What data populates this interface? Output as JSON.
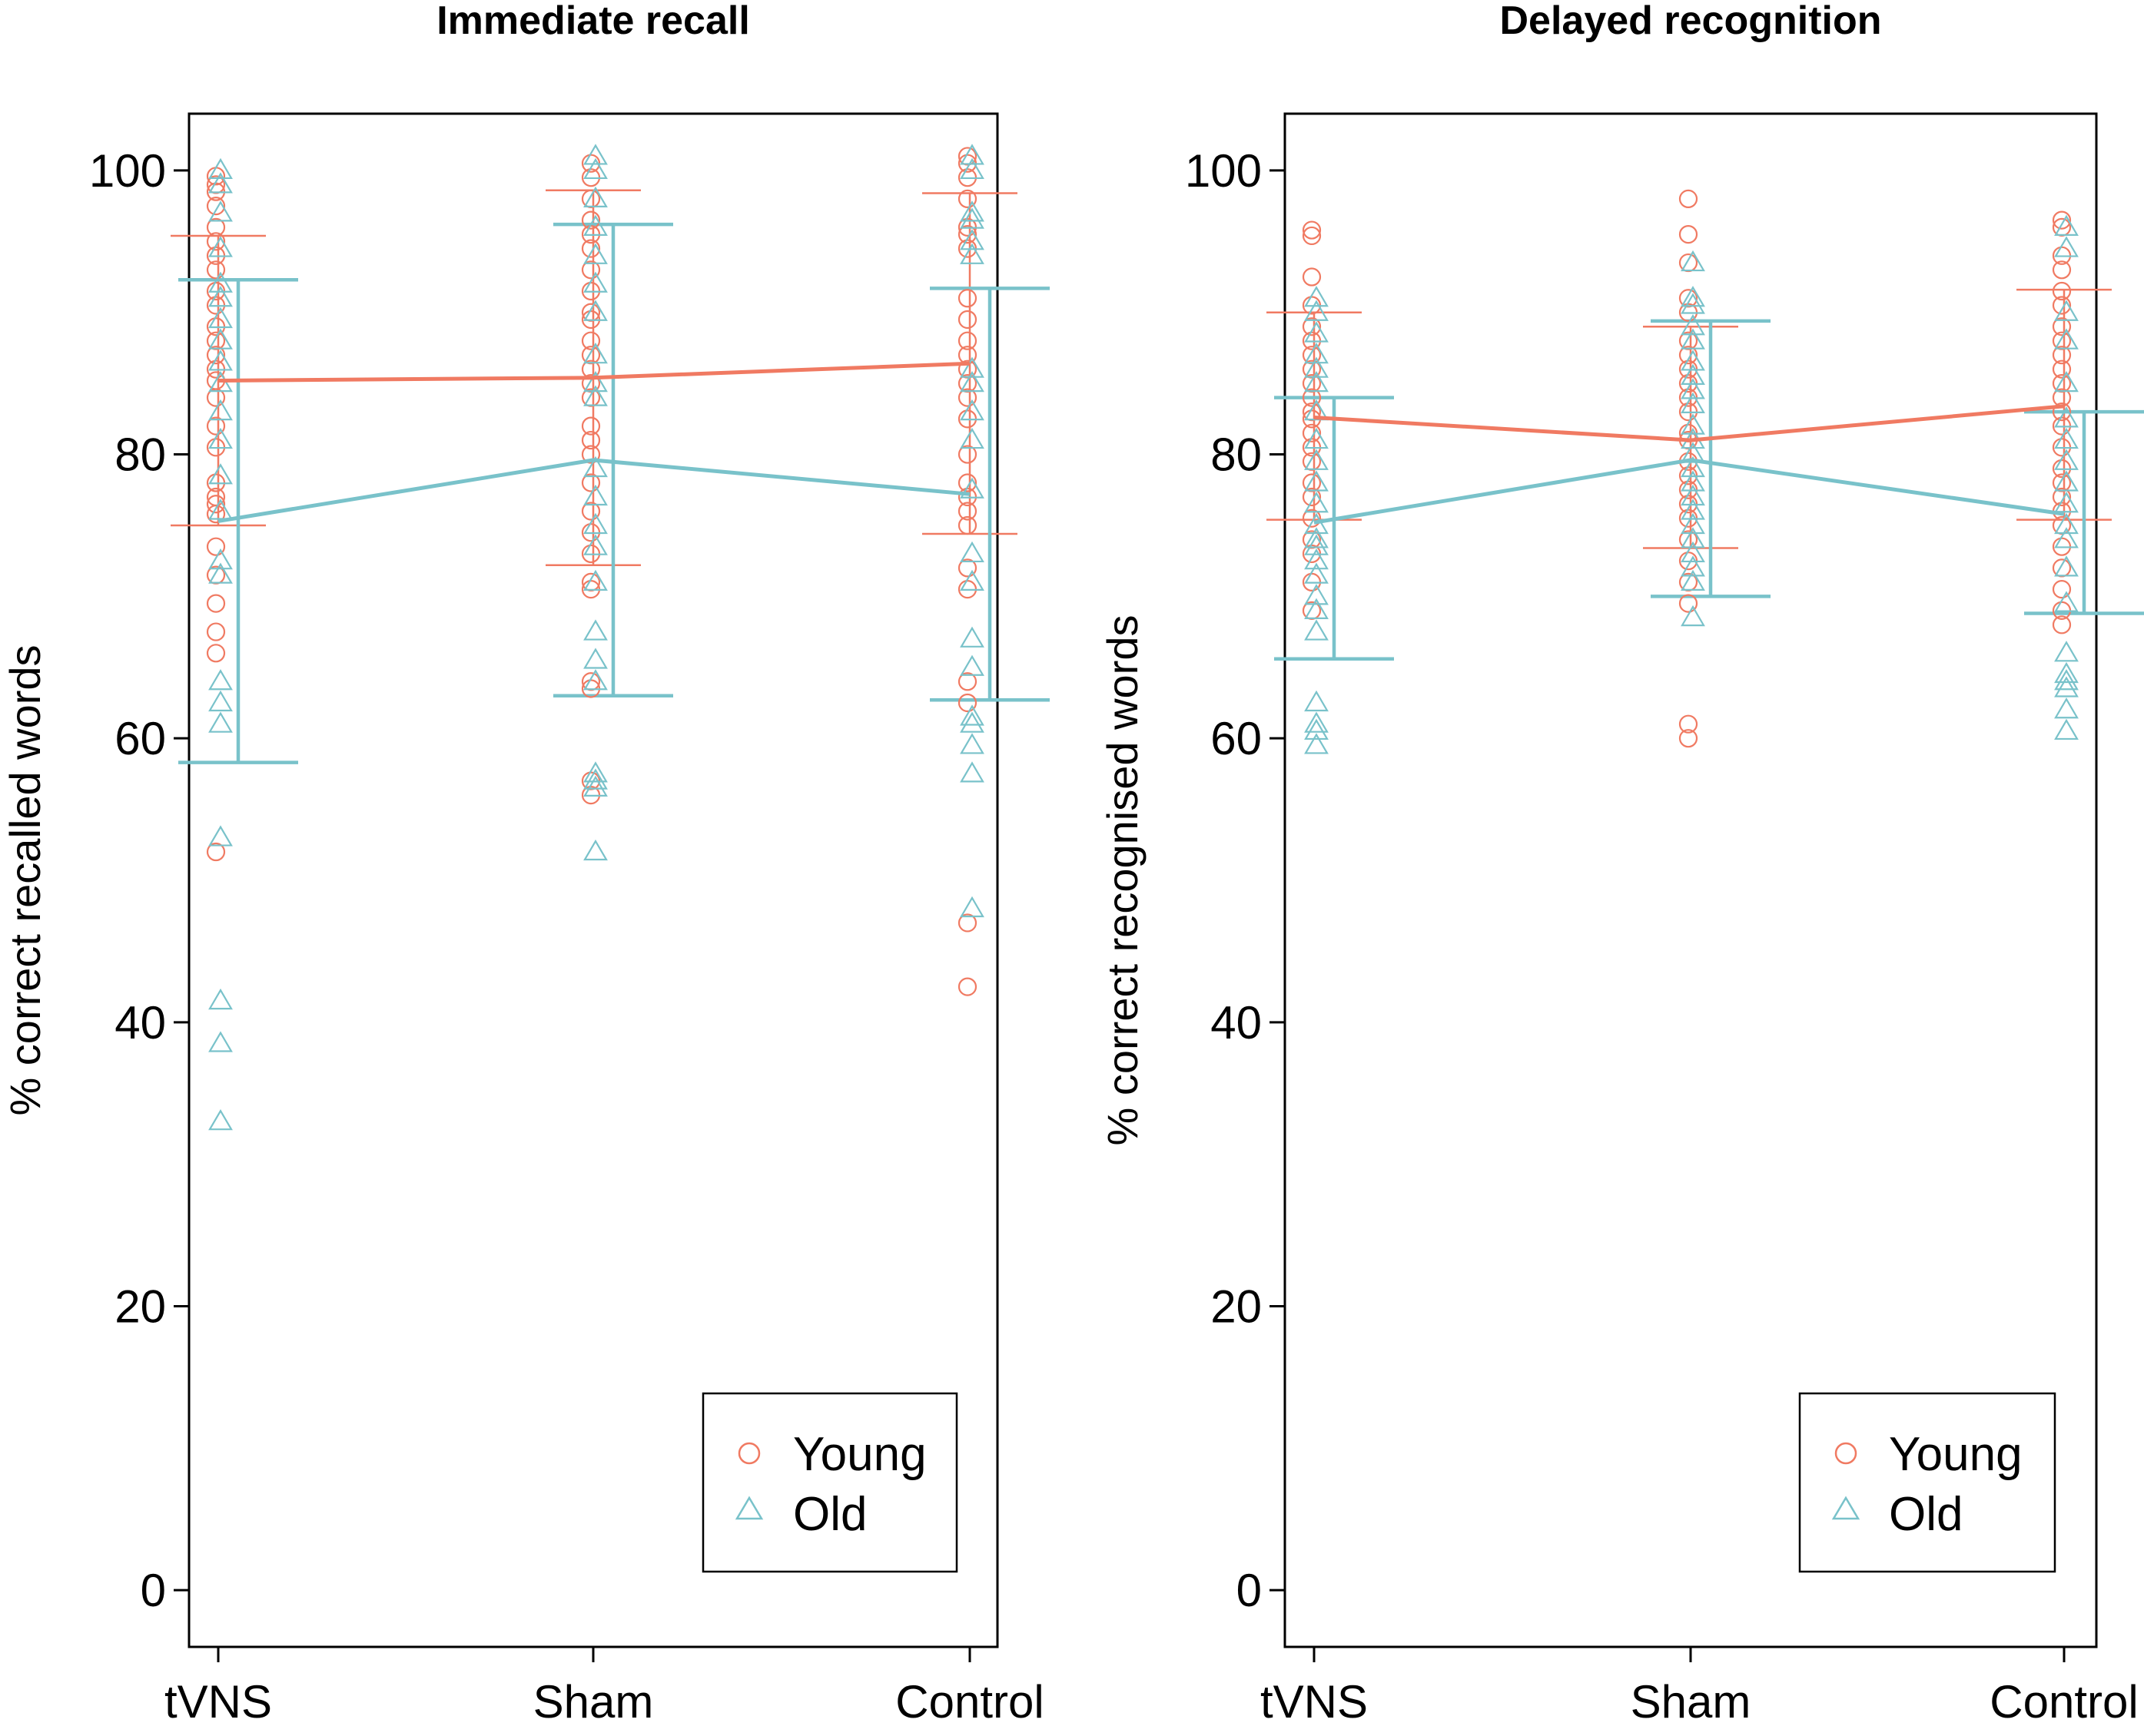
{
  "colors": {
    "young": "#F07A62",
    "old": "#79C2CA"
  },
  "legend": {
    "young_label": "Young",
    "old_label": "Old",
    "placement": "bottom-right"
  },
  "chart_data": [
    {
      "type": "scatter",
      "title": "Immediate recall",
      "xlabel": "",
      "ylabel": "% correct recalled words",
      "categories": [
        "tVNS",
        "Sham",
        "Control"
      ],
      "yticks": [
        0,
        20,
        40,
        60,
        80,
        100
      ],
      "ylim": [
        -4,
        104
      ],
      "series": [
        {
          "name": "Young",
          "marker": "circle",
          "means": [
            85.2,
            85.4,
            86.4
          ],
          "error_low": [
            75.0,
            72.2,
            74.4
          ],
          "error_high": [
            95.4,
            98.6,
            98.4
          ],
          "points": [
            [
              99.6,
              99.0,
              98.5,
              97.5,
              96.0,
              95.0,
              94.0,
              93.0,
              91.5,
              90.5,
              89.0,
              88.0,
              87.0,
              86.0,
              85.2,
              84.0,
              82.0,
              80.5,
              78.0,
              77.0,
              76.5,
              75.8,
              73.5,
              71.5,
              69.5,
              67.5,
              66.0,
              52.0
            ],
            [
              100.5,
              99.5,
              98.0,
              96.5,
              95.5,
              94.5,
              93.0,
              91.5,
              90.0,
              89.5,
              88.0,
              87.0,
              86.0,
              85.0,
              84.0,
              82.0,
              81.0,
              80.0,
              78.0,
              76.0,
              74.5,
              73.0,
              71.0,
              70.5,
              64.0,
              63.5,
              57.0,
              56.0
            ],
            [
              101.0,
              100.5,
              99.5,
              98.0,
              96.0,
              95.5,
              94.5,
              91.0,
              89.5,
              88.0,
              87.0,
              86.0,
              85.0,
              84.0,
              82.5,
              80.0,
              78.0,
              77.0,
              76.0,
              75.0,
              72.0,
              70.5,
              64.0,
              62.5,
              47.0,
              42.5
            ]
          ]
        },
        {
          "name": "Old",
          "marker": "triangle",
          "means": [
            75.3,
            79.6,
            77.2
          ],
          "error_low": [
            58.3,
            63.0,
            62.7
          ],
          "error_high": [
            92.3,
            96.2,
            91.7
          ],
          "points": [
            [
              100.0,
              99.0,
              97.0,
              94.5,
              92.0,
              91.0,
              89.5,
              88.0,
              86.5,
              85.0,
              83.0,
              81.0,
              78.5,
              76.0,
              72.5,
              71.5,
              64.0,
              62.5,
              61.0,
              53.0,
              41.5,
              38.5,
              33.0
            ],
            [
              101.0,
              100.0,
              98.0,
              96.0,
              94.0,
              92.0,
              90.0,
              87.0,
              85.0,
              84.0,
              79.0,
              77.0,
              75.0,
              73.5,
              71.0,
              67.5,
              65.5,
              64.0,
              57.5,
              57.0,
              56.5,
              52.0
            ],
            [
              101.0,
              100.0,
              97.0,
              96.5,
              95.0,
              94.0,
              86.0,
              85.0,
              83.0,
              81.0,
              77.5,
              73.0,
              71.0,
              67.0,
              65.0,
              61.5,
              61.0,
              59.5,
              57.5,
              48.0
            ]
          ]
        }
      ]
    },
    {
      "type": "scatter",
      "title": "Delayed recognition",
      "xlabel": "",
      "ylabel": "% correct recognised words",
      "categories": [
        "tVNS",
        "Sham",
        "Control"
      ],
      "yticks": [
        0,
        20,
        40,
        60,
        80,
        100
      ],
      "ylim": [
        -4,
        104
      ],
      "series": [
        {
          "name": "Young",
          "marker": "circle",
          "means": [
            82.6,
            81.0,
            83.4
          ],
          "error_low": [
            75.4,
            73.4,
            75.4
          ],
          "error_high": [
            90.0,
            89.0,
            91.6
          ],
          "points": [
            [
              95.8,
              95.4,
              92.5,
              90.5,
              89.0,
              88.0,
              87.0,
              86.0,
              85.0,
              84.0,
              83.0,
              82.5,
              81.5,
              80.5,
              79.5,
              78.0,
              77.0,
              75.5,
              74.0,
              73.0,
              71.0,
              69.0
            ],
            [
              98.0,
              95.5,
              93.5,
              91.0,
              90.0,
              88.0,
              87.0,
              86.0,
              85.0,
              84.0,
              83.0,
              81.5,
              81.0,
              79.5,
              78.5,
              77.5,
              76.5,
              75.5,
              74.0,
              72.5,
              71.0,
              69.5,
              61.0,
              60.0
            ],
            [
              96.5,
              96.0,
              94.0,
              93.0,
              91.5,
              90.5,
              89.0,
              88.0,
              87.0,
              86.0,
              85.0,
              84.0,
              83.0,
              82.0,
              80.5,
              79.0,
              78.0,
              77.0,
              76.0,
              75.0,
              73.5,
              72.0,
              70.5,
              69.0,
              68.0
            ]
          ]
        },
        {
          "name": "Old",
          "marker": "triangle",
          "means": [
            75.2,
            79.6,
            75.8
          ],
          "error_low": [
            65.6,
            70.0,
            68.8
          ],
          "error_high": [
            84.0,
            89.4,
            83.0
          ],
          "points": [
            [
              91.0,
              90.0,
              88.5,
              87.0,
              86.0,
              85.0,
              83.0,
              81.0,
              79.5,
              78.0,
              76.5,
              75.0,
              74.0,
              73.5,
              72.5,
              71.5,
              70.0,
              69.0,
              67.5,
              62.5,
              61.0,
              60.5,
              59.5
            ],
            [
              93.5,
              91.0,
              90.5,
              89.0,
              88.0,
              86.5,
              85.5,
              84.5,
              83.5,
              82.0,
              81.0,
              80.0,
              79.0,
              78.0,
              77.0,
              76.0,
              75.0,
              74.0,
              73.0,
              72.0,
              71.0,
              68.5
            ],
            [
              96.0,
              94.5,
              90.0,
              88.0,
              85.0,
              82.5,
              81.0,
              79.5,
              78.0,
              76.5,
              75.0,
              74.0,
              72.0,
              69.5,
              66.0,
              64.5,
              64.0,
              63.5,
              62.0,
              60.5
            ]
          ]
        }
      ]
    }
  ]
}
